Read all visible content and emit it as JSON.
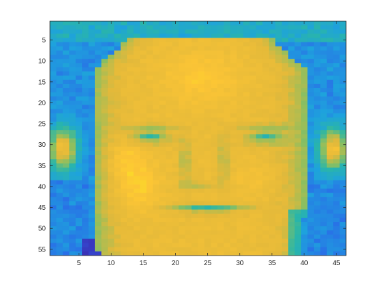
{
  "chart_data": {
    "type": "heatmap",
    "title": "",
    "xlabel": "",
    "ylabel": "",
    "rows": 56,
    "cols": 46,
    "xlim": [
      0.5,
      46.5
    ],
    "ylim": [
      0.5,
      56.5
    ],
    "y_reversed": true,
    "x_ticks": [
      5,
      10,
      15,
      20,
      25,
      30,
      35,
      40,
      45
    ],
    "y_ticks": [
      5,
      10,
      15,
      20,
      25,
      30,
      35,
      40,
      45,
      50,
      55
    ],
    "colormap": "parula",
    "colormap_stops": [
      "#3e26a8",
      "#2d5eea",
      "#1ea2dd",
      "#2ab6a7",
      "#8ebf5f",
      "#e3b93a",
      "#fcc535",
      "#f9fb15"
    ],
    "description_of_content": ""
  }
}
